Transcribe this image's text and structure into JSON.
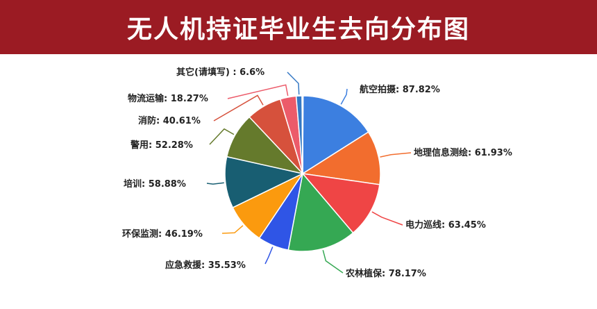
{
  "header": {
    "title": "无人机持证毕业生去向分布图"
  },
  "colors": {
    "header_bg": "#9b1b23"
  },
  "chart_data": {
    "type": "pie",
    "title": "无人机持证毕业生去向分布图",
    "unit": "%",
    "slices": [
      {
        "label": "航空拍摄",
        "value": 87.82,
        "display": "航空拍摄: 87.82%",
        "color": "#3c7fe0"
      },
      {
        "label": "地理信息测绘",
        "value": 61.93,
        "display": "地理信息测绘: 61.93%",
        "color": "#f26d2e"
      },
      {
        "label": "电力巡线",
        "value": 63.45,
        "display": "电力巡线: 63.45%",
        "color": "#ef4545"
      },
      {
        "label": "农林植保",
        "value": 78.17,
        "display": "农林植保: 78.17%",
        "color": "#35a853"
      },
      {
        "label": "应急救援",
        "value": 35.53,
        "display": "应急救援: 35.53%",
        "color": "#2f55e6"
      },
      {
        "label": "环保监测",
        "value": 46.19,
        "display": "环保监测: 46.19%",
        "color": "#fb9a0e"
      },
      {
        "label": "培训",
        "value": 58.88,
        "display": "培训: 58.88%",
        "color": "#185e72"
      },
      {
        "label": "警用",
        "value": 52.28,
        "display": "警用: 52.28%",
        "color": "#657a2c"
      },
      {
        "label": "消防",
        "value": 40.61,
        "display": "消防: 40.61%",
        "color": "#d6513c"
      },
      {
        "label": "物流运输",
        "value": 18.27,
        "display": "物流运输: 18.27%",
        "color": "#ec5b6a"
      },
      {
        "label": "其它(请填写)",
        "value": 6.6,
        "display": "其它(请填写) : 6.6%",
        "color": "#3478c4"
      },
      {
        "label": "",
        "value": 1.2,
        "display": "",
        "color": "#21893d"
      }
    ]
  }
}
